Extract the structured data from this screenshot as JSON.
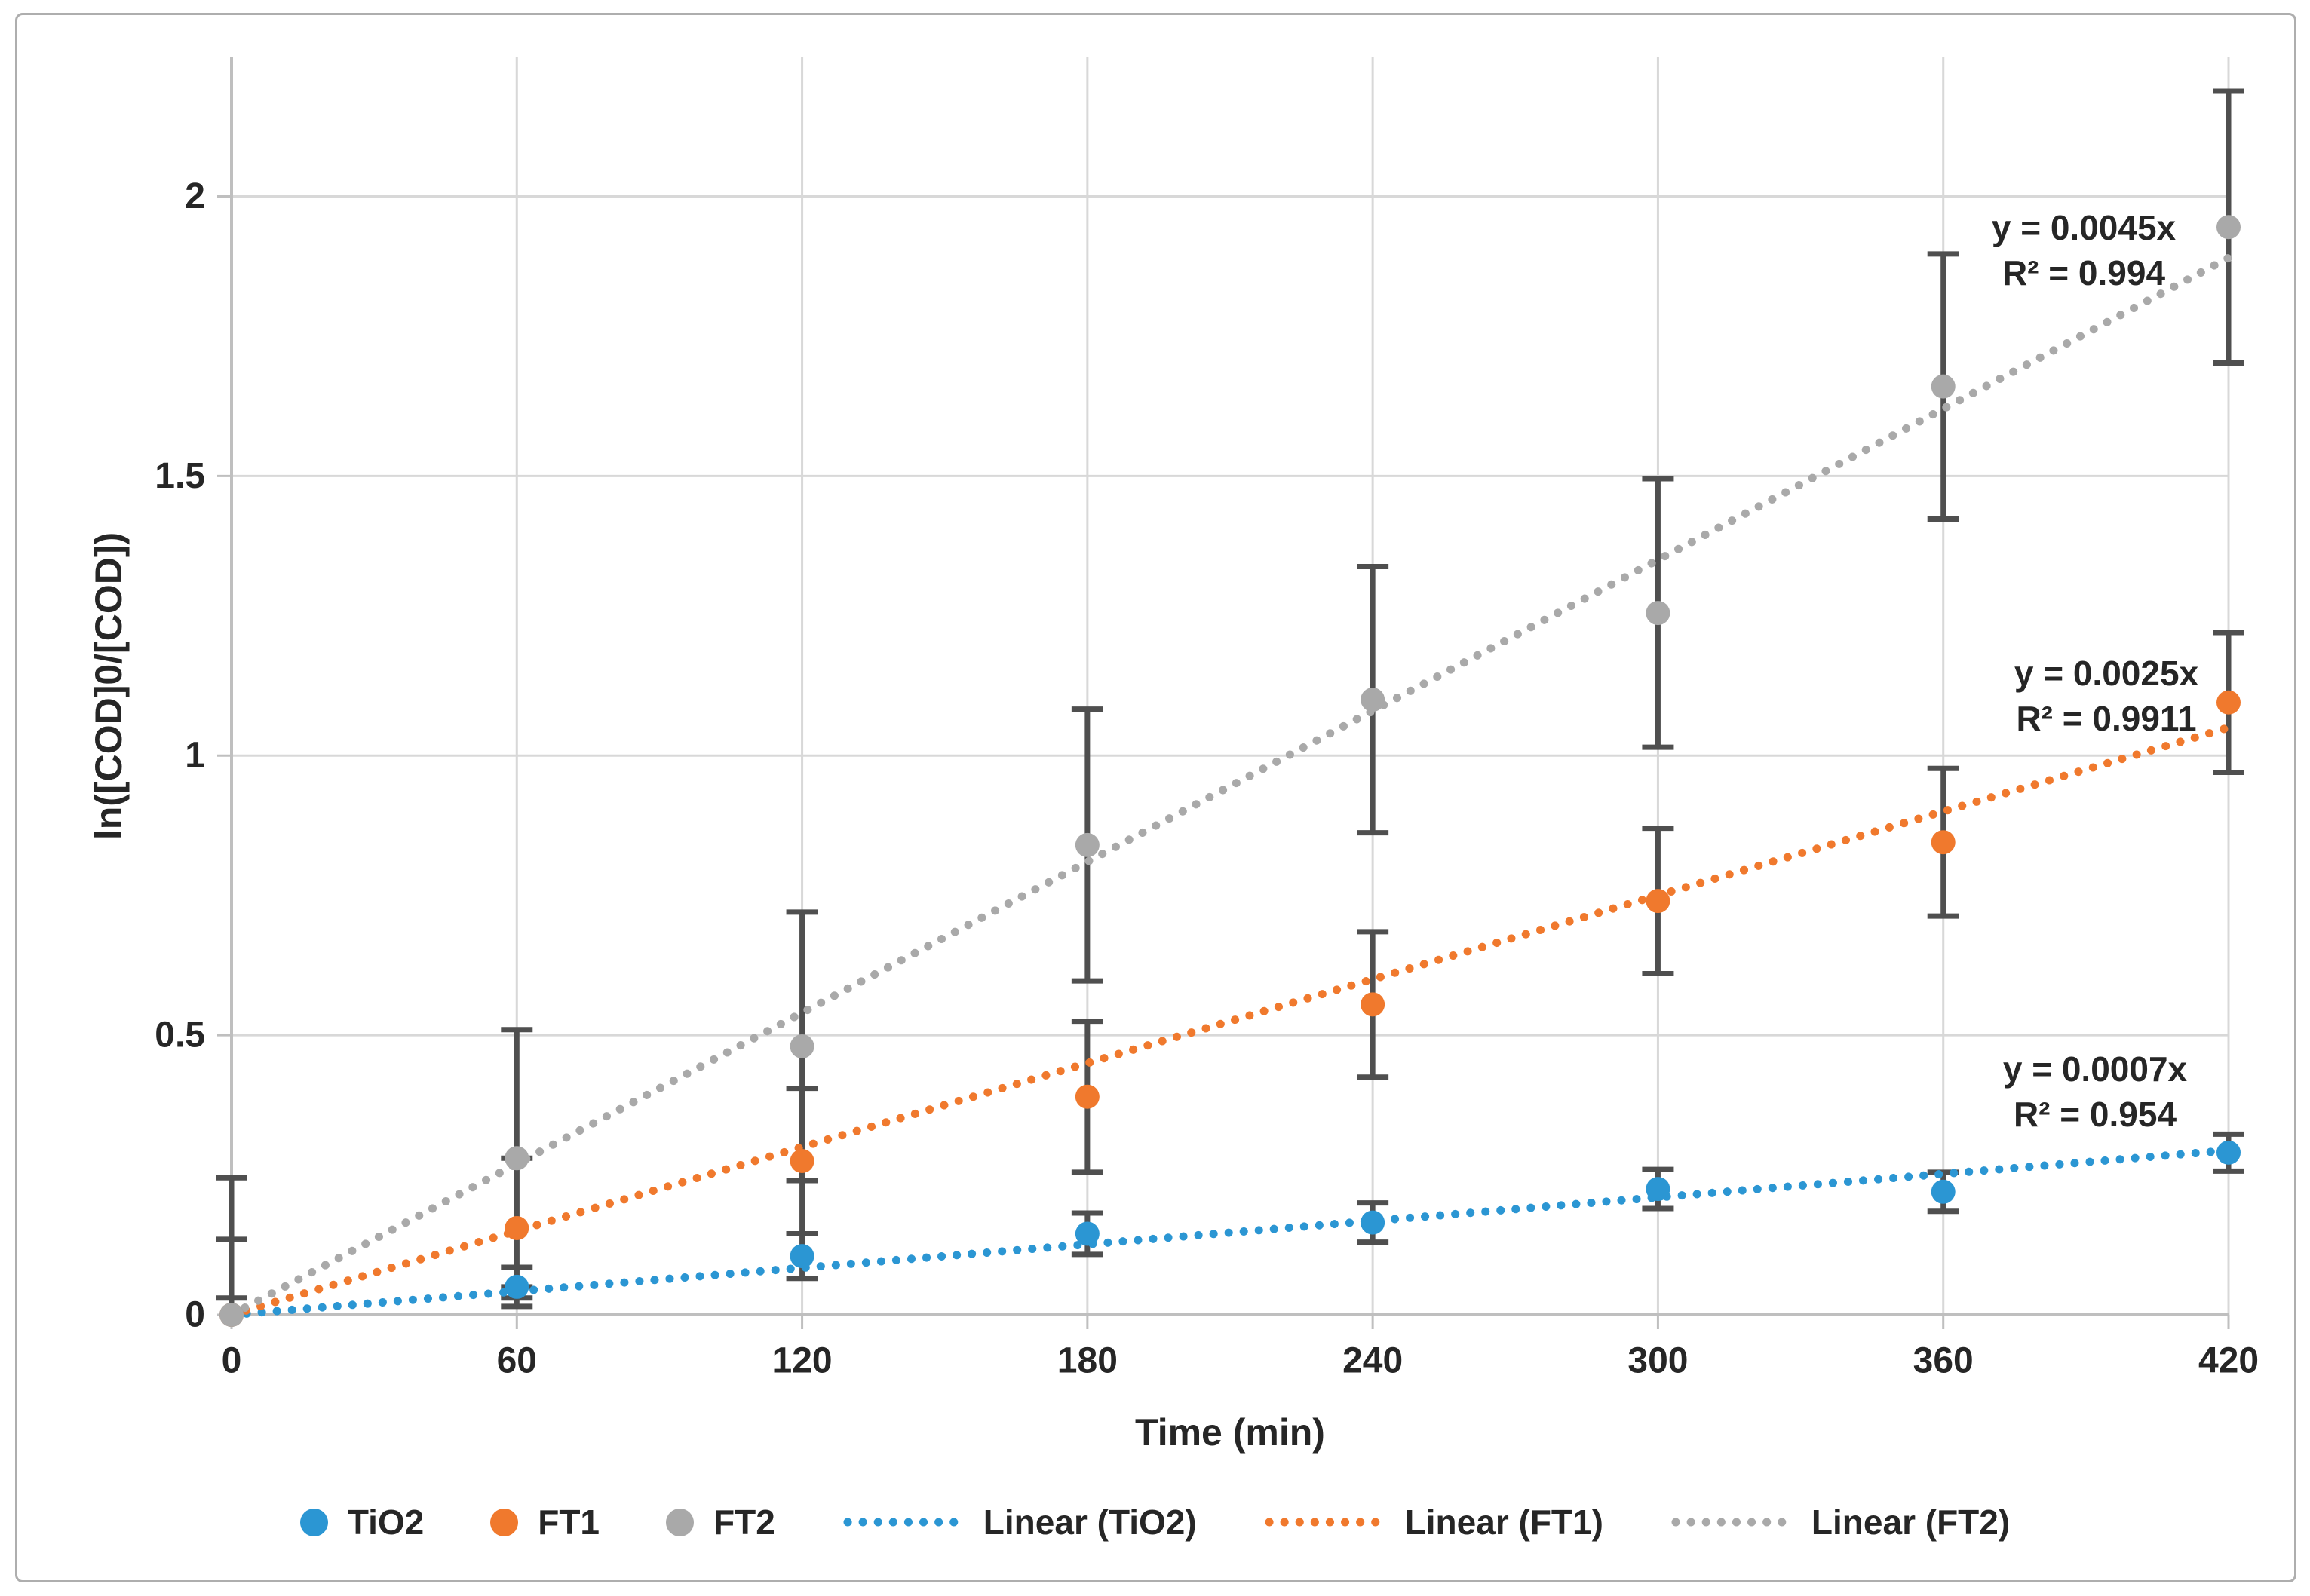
{
  "chart_data": {
    "type": "scatter",
    "xlabel": "Time (min)",
    "ylabel": "ln([COD]0/[COD])",
    "xlim": [
      0,
      420
    ],
    "ylim": [
      0,
      2.25
    ],
    "x_ticks": [
      0,
      60,
      120,
      180,
      240,
      300,
      360,
      420
    ],
    "y_ticks": [
      0,
      0.5,
      1,
      1.5,
      2
    ],
    "grid": true,
    "legend_position": "bottom",
    "x": [
      0,
      60,
      120,
      180,
      240,
      300,
      360,
      420
    ],
    "series": [
      {
        "name": "TiO2",
        "color": "#2B96D3",
        "values": [
          0,
          0.05,
          0.105,
          0.145,
          0.165,
          0.225,
          0.22,
          0.29
        ],
        "error": [
          0.03,
          0.035,
          0.04,
          0.037,
          0.035,
          0.035,
          0.035,
          0.033
        ],
        "trendline": {
          "type": "linear",
          "slope": 0.0007,
          "equation": "y = 0.0007x",
          "r2": "R² = 0.954"
        }
      },
      {
        "name": "FT1",
        "color": "#F0792D",
        "values": [
          0,
          0.155,
          0.275,
          0.39,
          0.555,
          0.74,
          0.845,
          1.095
        ],
        "error": [
          0.135,
          0.125,
          0.13,
          0.135,
          0.13,
          0.13,
          0.132,
          0.125
        ],
        "trendline": {
          "type": "linear",
          "slope": 0.0025,
          "equation": "y = 0.0025x",
          "r2": "R² = 0.9911"
        }
      },
      {
        "name": "FT2",
        "color": "#A9A9A9",
        "values": [
          0,
          0.28,
          0.48,
          0.84,
          1.1,
          1.255,
          1.66,
          1.945
        ],
        "error": [
          0.245,
          0.23,
          0.24,
          0.243,
          0.238,
          0.24,
          0.237,
          0.243
        ],
        "trendline": {
          "type": "linear",
          "slope": 0.0045,
          "equation": "y = 0.0045x",
          "r2": "R² = 0.994"
        }
      }
    ]
  },
  "axes": {
    "x_tick_labels": [
      "0",
      "60",
      "120",
      "180",
      "240",
      "300",
      "360",
      "420"
    ],
    "y_tick_labels": [
      "0",
      "0.5",
      "1",
      "1.5",
      "2"
    ]
  },
  "annotations": [
    {
      "series": "FT2",
      "line1": "y = 0.0045x",
      "line2": "R² = 0.994"
    },
    {
      "series": "FT1",
      "line1": "y = 0.0025x",
      "line2": "R² = 0.9911"
    },
    {
      "series": "TiO2",
      "line1": "y = 0.0007x",
      "line2": "R² = 0.954"
    }
  ],
  "legend": {
    "items": [
      {
        "label": "TiO2",
        "marker": "dot",
        "color": "#2B96D3"
      },
      {
        "label": "FT1",
        "marker": "dot",
        "color": "#F0792D"
      },
      {
        "label": "FT2",
        "marker": "dot",
        "color": "#A9A9A9"
      },
      {
        "label": "Linear (TiO2)",
        "marker": "dotted-line",
        "color": "#2B96D3"
      },
      {
        "label": "Linear (FT1)",
        "marker": "dotted-line",
        "color": "#F0792D"
      },
      {
        "label": "Linear (FT2)",
        "marker": "dotted-line",
        "color": "#A9A9A9"
      }
    ]
  },
  "colors": {
    "error_bar": "#4F4F4F",
    "gridline": "#D8D8D8",
    "axis_line": "#BFBFBF",
    "text": "#262626",
    "frame_border": "#AEAEAE",
    "background": "#FFFFFF"
  }
}
